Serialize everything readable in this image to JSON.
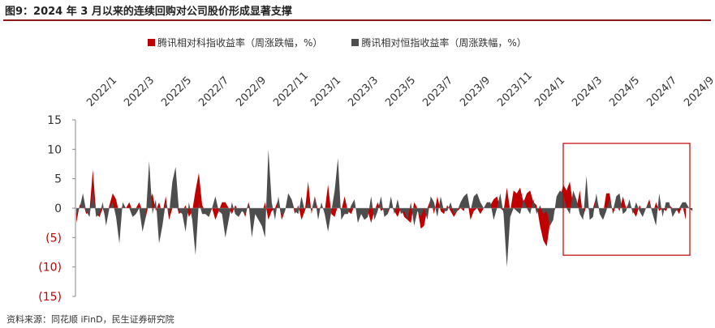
{
  "figure_title": "图9：2024 年 3 月以来的连续回购对公司股价形成显著支撑",
  "source_note": "资料来源：同花顺 iFinD，民生证券研究院",
  "colors": {
    "series_a": "#c00000",
    "series_b": "#4d4d4d",
    "highlight_box": "#c00000",
    "negative_label": "#c00000"
  },
  "chart_data": {
    "type": "area",
    "title": "",
    "xlabel": "",
    "ylabel": "",
    "ylim": [
      -15,
      15
    ],
    "yticks": [
      15,
      10,
      5,
      0,
      -5,
      -10,
      -15
    ],
    "ytick_labels": [
      "15",
      "10",
      "5",
      "0",
      "(5)",
      "(10)",
      "(15)"
    ],
    "xtick_labels": [
      "2022/1",
      "2022/3",
      "2022/5",
      "2022/7",
      "2022/9",
      "2022/11",
      "2023/1",
      "2023/3",
      "2023/5",
      "2023/7",
      "2023/9",
      "2023/11",
      "2024/1",
      "2024/3",
      "2024/5",
      "2024/7",
      "2024/9"
    ],
    "legend": {
      "placement": "top"
    },
    "highlight": {
      "x_start": "2024/3",
      "x_end": "2024/9",
      "y_range": [
        -8,
        11
      ]
    },
    "series": [
      {
        "name": "腾讯相对科指收益率（周涨跌幅，%）",
        "values": [
          -2.5,
          0.5,
          1,
          -1,
          -0.5,
          6.5,
          -1,
          -1.5,
          0,
          -2,
          0.5,
          2.5,
          1.5,
          -1,
          0.5,
          0,
          1,
          -0.5,
          0,
          1,
          -0.5,
          -1.5,
          1,
          2.5,
          -0.5,
          1,
          -1,
          2,
          -2,
          0,
          1,
          -1,
          -0.5,
          0.5,
          -1.5,
          -0.5,
          3,
          6,
          0.5,
          -0.5,
          -1.5,
          0,
          -2,
          -0.5,
          1,
          1,
          0,
          -1,
          0.5,
          -0.5,
          0,
          -1.5,
          1,
          -1,
          -0.5,
          0,
          -1,
          1,
          -2,
          -0.5,
          0,
          1.5,
          -2,
          -0.5,
          1.5,
          1.5,
          -1,
          0.5,
          -2,
          -0.5,
          4.5,
          -1,
          2,
          -0.5,
          0.5,
          -0.5,
          4,
          -1,
          -1.5,
          0.5,
          -0.5,
          2,
          -0.5,
          -1,
          0.5,
          -1,
          0,
          -1.5,
          -0.5,
          -2.5,
          -0.5,
          1,
          -0.5,
          0,
          -1,
          0.5,
          -0.5,
          -1.5,
          0,
          -1.5,
          -2,
          -2.5,
          1,
          0,
          -3.5,
          -3,
          0,
          1.5,
          -1,
          2,
          -0.5,
          -1,
          0.5,
          -0.5,
          -1.5,
          -0.5,
          0,
          -0.5,
          1.5,
          -2,
          -0.5,
          0,
          -1,
          0,
          1,
          0.5,
          1.5,
          2,
          0,
          -0.5,
          3.5,
          -0.5,
          3,
          2.5,
          3.5,
          1,
          2.5,
          3,
          1,
          0.5,
          -3,
          -5.5,
          -6.5,
          -2.5,
          -1,
          0.5,
          1.5,
          4,
          3,
          4.5,
          0.5,
          0,
          3,
          -1.5,
          0.5,
          -0.5,
          0,
          2,
          -0.5,
          -1,
          2.5,
          2.5,
          -1,
          0.5,
          -0.5,
          2,
          0,
          1,
          -0.5,
          -1.5,
          0.5,
          -0.5,
          0,
          1.5,
          -1,
          1,
          -0.5,
          0,
          -0.5,
          0.5,
          0,
          0,
          -1,
          0.5,
          -2
        ]
      },
      {
        "name": "腾讯相对恒指收益率（周涨跌幅，%）",
        "values": [
          -1,
          0,
          2.5,
          -0.5,
          -1.5,
          3,
          -1.5,
          -1,
          1,
          -3,
          0,
          1,
          -1.5,
          -6,
          1,
          0,
          0,
          -1.5,
          -1,
          0,
          -4,
          -1.5,
          8,
          -1,
          1.5,
          -6,
          -3,
          1,
          -1,
          4.5,
          7,
          -0.5,
          -1,
          -4,
          1,
          -2,
          -8,
          1,
          -1,
          -1,
          -1.5,
          0,
          2,
          -0.5,
          -1,
          -5,
          -2,
          1,
          -1,
          -1.5,
          -0.5,
          -1,
          1,
          -5,
          -1,
          -2,
          -3,
          -5,
          10,
          1,
          -2,
          2,
          -1.5,
          -0.5,
          2.5,
          1.5,
          -0.5,
          -1,
          2,
          -0.5,
          1,
          -0.5,
          2,
          -2,
          1,
          -1,
          -4,
          -0.5,
          3,
          8.5,
          -2,
          -1,
          -1,
          0.5,
          1.5,
          -2.5,
          -1,
          -2,
          -1.5,
          2,
          -2,
          -0.5,
          2,
          -1.5,
          -1,
          2,
          -1,
          1.5,
          -1,
          -0.5,
          -2,
          1,
          -3,
          -0.5,
          -1.5,
          0,
          -2,
          2,
          1,
          -1.5,
          2,
          -0.5,
          -0.5,
          1,
          -1,
          -0.5,
          1,
          2,
          2.5,
          -0.5,
          2,
          2.5,
          1,
          0,
          1,
          1,
          -2,
          0,
          2.5,
          -1,
          -10,
          -1.5,
          0,
          -0.5,
          -1,
          1.5,
          0,
          -1,
          1.5,
          -1,
          0.5,
          -1,
          -0.5,
          -3,
          -2,
          2,
          3,
          2.5,
          0,
          -1,
          3,
          1.5,
          -1,
          -2,
          5.5,
          -2,
          -1.5,
          2.5,
          -1,
          -2,
          -0.5,
          1.5,
          -0.5,
          2,
          2.5,
          -1,
          -0.5,
          1.5,
          -1,
          1,
          -0.5,
          -1.5,
          0,
          1,
          -1,
          -3,
          2.5,
          -1.5,
          1,
          1,
          -1.5,
          -0.5,
          0,
          1,
          1,
          0,
          -0.5
        ]
      }
    ]
  }
}
